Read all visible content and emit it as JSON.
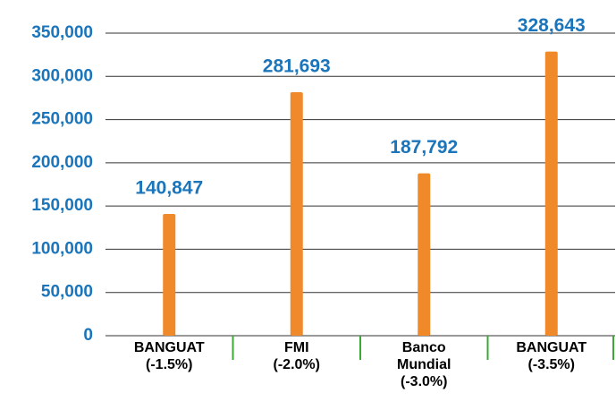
{
  "chart_data": {
    "type": "bar",
    "categories": [
      [
        "BANGUAT",
        "(-1.5%)"
      ],
      [
        "FMI",
        "(-2.0%)"
      ],
      [
        "Banco",
        "Mundial",
        "(-3.0%)"
      ],
      [
        "BANGUAT",
        "(-3.5%)"
      ]
    ],
    "values": [
      140847,
      281693,
      187792,
      328643
    ],
    "value_labels": [
      "140,847",
      "281,693",
      "187,792",
      "328,643"
    ],
    "color": "#f0892a",
    "ylim": [
      0,
      350000
    ],
    "yticks": [
      0,
      {
        "value": 50000,
        "label": "50,000"
      },
      {
        "value": 100000,
        "label": "100,000"
      },
      {
        "value": 150000,
        "label": "150,000"
      },
      {
        "value": 200000,
        "label": "200,000"
      },
      {
        "value": 250000,
        "label": "250,000"
      },
      {
        "value": 300000,
        "label": "300,000"
      },
      {
        "value": 350000,
        "label": "350,000"
      }
    ],
    "grid": true
  }
}
